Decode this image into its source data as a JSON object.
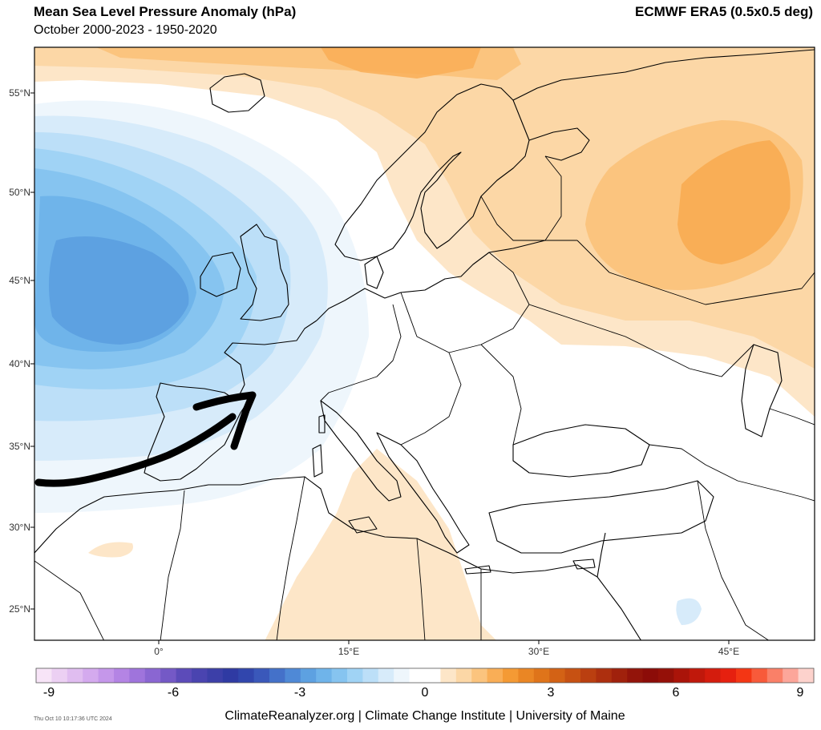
{
  "header": {
    "title": "Mean Sea Level Pressure Anomaly (hPa)",
    "subtitle": "October 2000-2023 - 1950-2020",
    "source": "ECMWF ERA5 (0.5x0.5 deg)"
  },
  "map": {
    "lat_labels": [
      "55°N",
      "50°N",
      "45°N",
      "40°N",
      "35°N",
      "30°N",
      "25°N"
    ],
    "lon_labels": [
      "0°",
      "15°E",
      "30°E",
      "45°E"
    ],
    "annotation": "hand-drawn-arrow"
  },
  "colorbar": {
    "labels": [
      "-9",
      "-6",
      "-3",
      "0",
      "3",
      "6",
      "9"
    ],
    "colors": [
      "#f7e4f7",
      "#ecd0f3",
      "#e0bdf0",
      "#d4aaee",
      "#c597ea",
      "#b484e4",
      "#9f74dc",
      "#8a66d2",
      "#7459c6",
      "#5c4bb9",
      "#4a44b0",
      "#3c3fa8",
      "#2f3aa3",
      "#3146ad",
      "#3a58ba",
      "#4471c9",
      "#4f89d6",
      "#5da1e1",
      "#6fb4ea",
      "#86c4f0",
      "#a0d3f5",
      "#bcdff8",
      "#d7ebfa",
      "#eef6fc",
      "#ffffff",
      "#ffffff",
      "#fde6c8",
      "#fcd7a6",
      "#fbc47e",
      "#f9ae56",
      "#f49a34",
      "#ea8624",
      "#df741a",
      "#d36215",
      "#c75112",
      "#ba3f10",
      "#ad2f0e",
      "#a0210c",
      "#93140a",
      "#8c0c08",
      "#951008",
      "#aa1409",
      "#c0180b",
      "#d41c0d",
      "#e6200f",
      "#f43614",
      "#f85a3a",
      "#fa8068",
      "#fca69a",
      "#fdd2cc"
    ]
  },
  "footer": {
    "text": "ClimateReanalyzer.org | Climate Change Institute | University of Maine",
    "timestamp": "Thu Oct 10 10:17:36 UTC 2024"
  }
}
